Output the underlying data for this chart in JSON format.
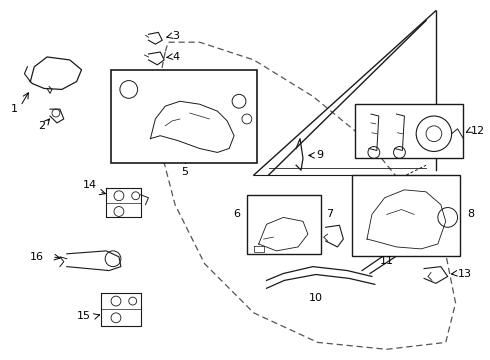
{
  "background_color": "#ffffff",
  "line_color": "#1a1a1a",
  "dashed_color": "#555555",
  "font_size": 7.5,
  "parts": {
    "door_dashed": {
      "x": [
        0.255,
        0.24,
        0.235,
        0.245,
        0.29,
        0.44,
        0.65,
        0.8,
        0.835,
        0.8,
        0.65,
        0.44,
        0.29,
        0.255
      ],
      "y": [
        0.82,
        0.7,
        0.55,
        0.38,
        0.18,
        0.07,
        0.05,
        0.12,
        0.3,
        0.58,
        0.9,
        0.96,
        0.9,
        0.82
      ]
    },
    "window_outer": {
      "x": [
        0.31,
        0.39,
        0.57,
        0.74,
        0.8,
        0.74,
        0.57,
        0.39,
        0.31
      ],
      "y": [
        0.6,
        0.9,
        0.95,
        0.9,
        0.65,
        0.9,
        0.95,
        0.9,
        0.6
      ]
    },
    "window_inner": {
      "x": [
        0.34,
        0.4,
        0.57,
        0.73,
        0.78,
        0.73,
        0.57,
        0.4,
        0.34
      ],
      "y": [
        0.6,
        0.87,
        0.92,
        0.87,
        0.64,
        0.87,
        0.92,
        0.87,
        0.6
      ]
    }
  }
}
